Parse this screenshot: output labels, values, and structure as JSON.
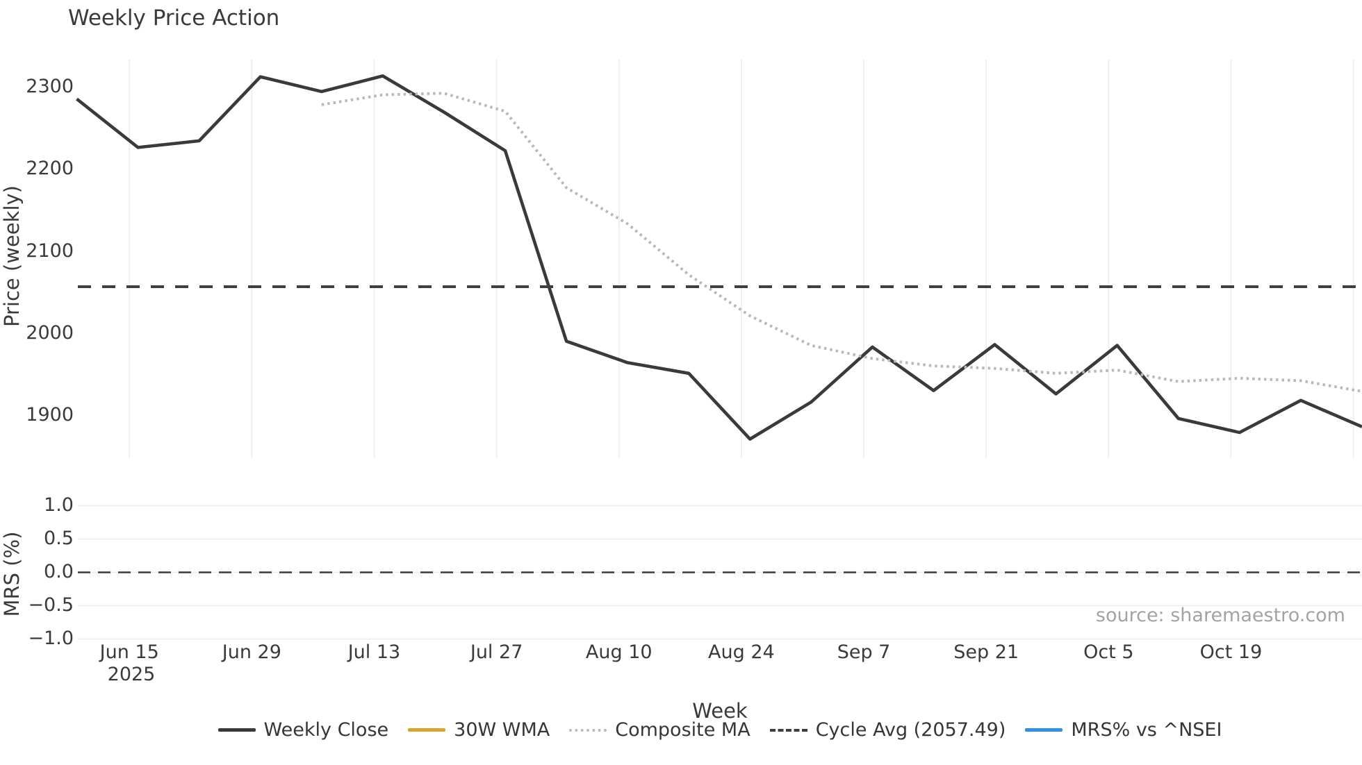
{
  "title": "Weekly Price Action",
  "source": "source: sharemaestro.com",
  "colors": {
    "weekly_close": "#3a3a3a",
    "wma_30w": "#d6a62c",
    "composite_ma": "#b9b9b9",
    "cycle_avg": "#3f3f3f",
    "mrs_line": "#2e8fe3",
    "grid": "#e9edf2",
    "zero_line": "#3a3a3a",
    "text": "#363636",
    "source_text": "#a3a3a3"
  },
  "price_axis": {
    "label": "Price (weekly)",
    "ticks": [
      2300,
      2200,
      2100,
      2000,
      1900
    ]
  },
  "mrs_axis": {
    "label": "MRS (%)",
    "ticks": [
      1.0,
      0.5,
      0.0,
      -0.5,
      -1.0
    ],
    "tick_labels": [
      "1.0",
      "0.5",
      "0.0",
      "−0.5",
      "−1.0"
    ]
  },
  "x_axis": {
    "label": "Week",
    "tick_labels": [
      "Jun 15",
      "Jun 29",
      "Jul 13",
      "Jul 27",
      "Aug 10",
      "Aug 24",
      "Sep 7",
      "Sep 21",
      "Oct 5",
      "Oct 19"
    ],
    "year_label": "2025",
    "unlabeled_trailing_gridlines": 1
  },
  "legend": [
    {
      "label": "Weekly Close",
      "color": "#3a3a3a",
      "style": "solid"
    },
    {
      "label": "30W WMA",
      "color": "#d6a62c",
      "style": "solid"
    },
    {
      "label": "Composite MA",
      "color": "#b9b9b9",
      "style": "dotted"
    },
    {
      "label": "Cycle Avg (2057.49)",
      "color": "#3f3f3f",
      "style": "dashed"
    },
    {
      "label": "MRS% vs ^NSEI",
      "color": "#2e8fe3",
      "style": "solid"
    }
  ],
  "chart_data": [
    {
      "type": "line",
      "title": "Weekly Price Action",
      "xlabel": "Week",
      "ylabel": "Price (weekly)",
      "ylim": [
        1849,
        2332
      ],
      "grid": "vertical-only",
      "legend_position": "bottom-center",
      "x": [
        "2025-06-09",
        "2025-06-16",
        "2025-06-23",
        "2025-06-30",
        "2025-07-07",
        "2025-07-14",
        "2025-07-21",
        "2025-07-28",
        "2025-08-04",
        "2025-08-11",
        "2025-08-18",
        "2025-08-25",
        "2025-09-01",
        "2025-09-08",
        "2025-09-15",
        "2025-09-22",
        "2025-09-29",
        "2025-10-06",
        "2025-10-13",
        "2025-10-20",
        "2025-10-27",
        "2025-11-03"
      ],
      "series": [
        {
          "name": "Weekly Close",
          "style": "solid",
          "color": "#3a3a3a",
          "values": [
            2286,
            2227,
            2235,
            2313,
            2295,
            2314,
            2270,
            2223,
            1991,
            1965,
            1952,
            1872,
            1917,
            1984,
            1931,
            1987,
            1927,
            1986,
            1897,
            1880,
            1919,
            1887
          ]
        },
        {
          "name": "30W WMA",
          "style": "solid",
          "color": "#d6a62c",
          "values": [
            null,
            null,
            null,
            null,
            null,
            null,
            null,
            null,
            null,
            null,
            null,
            null,
            null,
            null,
            null,
            null,
            null,
            null,
            null,
            null,
            null,
            null
          ],
          "note": "in legend only; no visible line (insufficient data)"
        },
        {
          "name": "Composite MA",
          "style": "dotted",
          "color": "#b9b9b9",
          "values": [
            null,
            null,
            null,
            null,
            2279,
            2291,
            2293,
            2271,
            2178,
            2134,
            2072,
            2022,
            1986,
            1970,
            1961,
            1958,
            1952,
            1956,
            1942,
            1946,
            1943,
            1930
          ]
        },
        {
          "name": "Cycle Avg",
          "type": "hline",
          "style": "dashed",
          "color": "#3f3f3f",
          "value": 2057.49
        }
      ]
    },
    {
      "type": "line",
      "ylabel": "MRS (%)",
      "ylim": [
        -1.05,
        1.05
      ],
      "grid": "horizontal-only",
      "series": [
        {
          "name": "MRS% vs ^NSEI",
          "style": "solid",
          "color": "#2e8fe3",
          "values": [],
          "note": "in legend only; no visible line"
        },
        {
          "name": "zero-line",
          "type": "hline",
          "style": "dashed",
          "color": "#3a3a3a",
          "value": 0.0
        }
      ]
    }
  ]
}
